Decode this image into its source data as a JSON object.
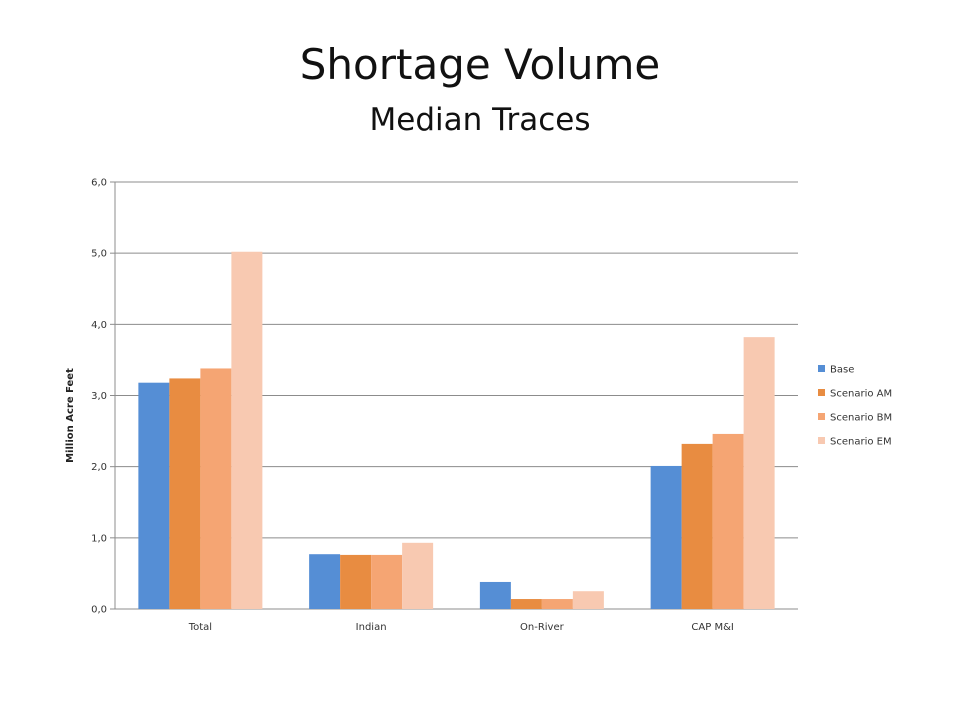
{
  "chart_data": {
    "type": "bar",
    "title": "Shortage Volume",
    "subtitle": "Median Traces",
    "ylabel": "Million Acre Feet",
    "xlabel": "",
    "categories": [
      "Total",
      "Indian",
      "On-River",
      "CAP M&I"
    ],
    "yticks": [
      "0,0",
      "1,0",
      "2,0",
      "3,0",
      "4,0",
      "5,0",
      "6,0"
    ],
    "ylim": [
      0,
      6
    ],
    "grid": true,
    "legend_position": "right",
    "series": [
      {
        "name": "Base",
        "color": "#558ED5",
        "values": [
          3.18,
          0.77,
          0.38,
          2.01
        ]
      },
      {
        "name": "Scenario AM",
        "color": "#E88C41",
        "values": [
          3.24,
          0.76,
          0.14,
          2.32
        ]
      },
      {
        "name": "Scenario BM",
        "color": "#F5A573",
        "values": [
          3.38,
          0.76,
          0.14,
          2.46
        ]
      },
      {
        "name": "Scenario EM",
        "color": "#F8C9B1",
        "values": [
          5.02,
          0.93,
          0.25,
          3.82
        ]
      }
    ]
  }
}
